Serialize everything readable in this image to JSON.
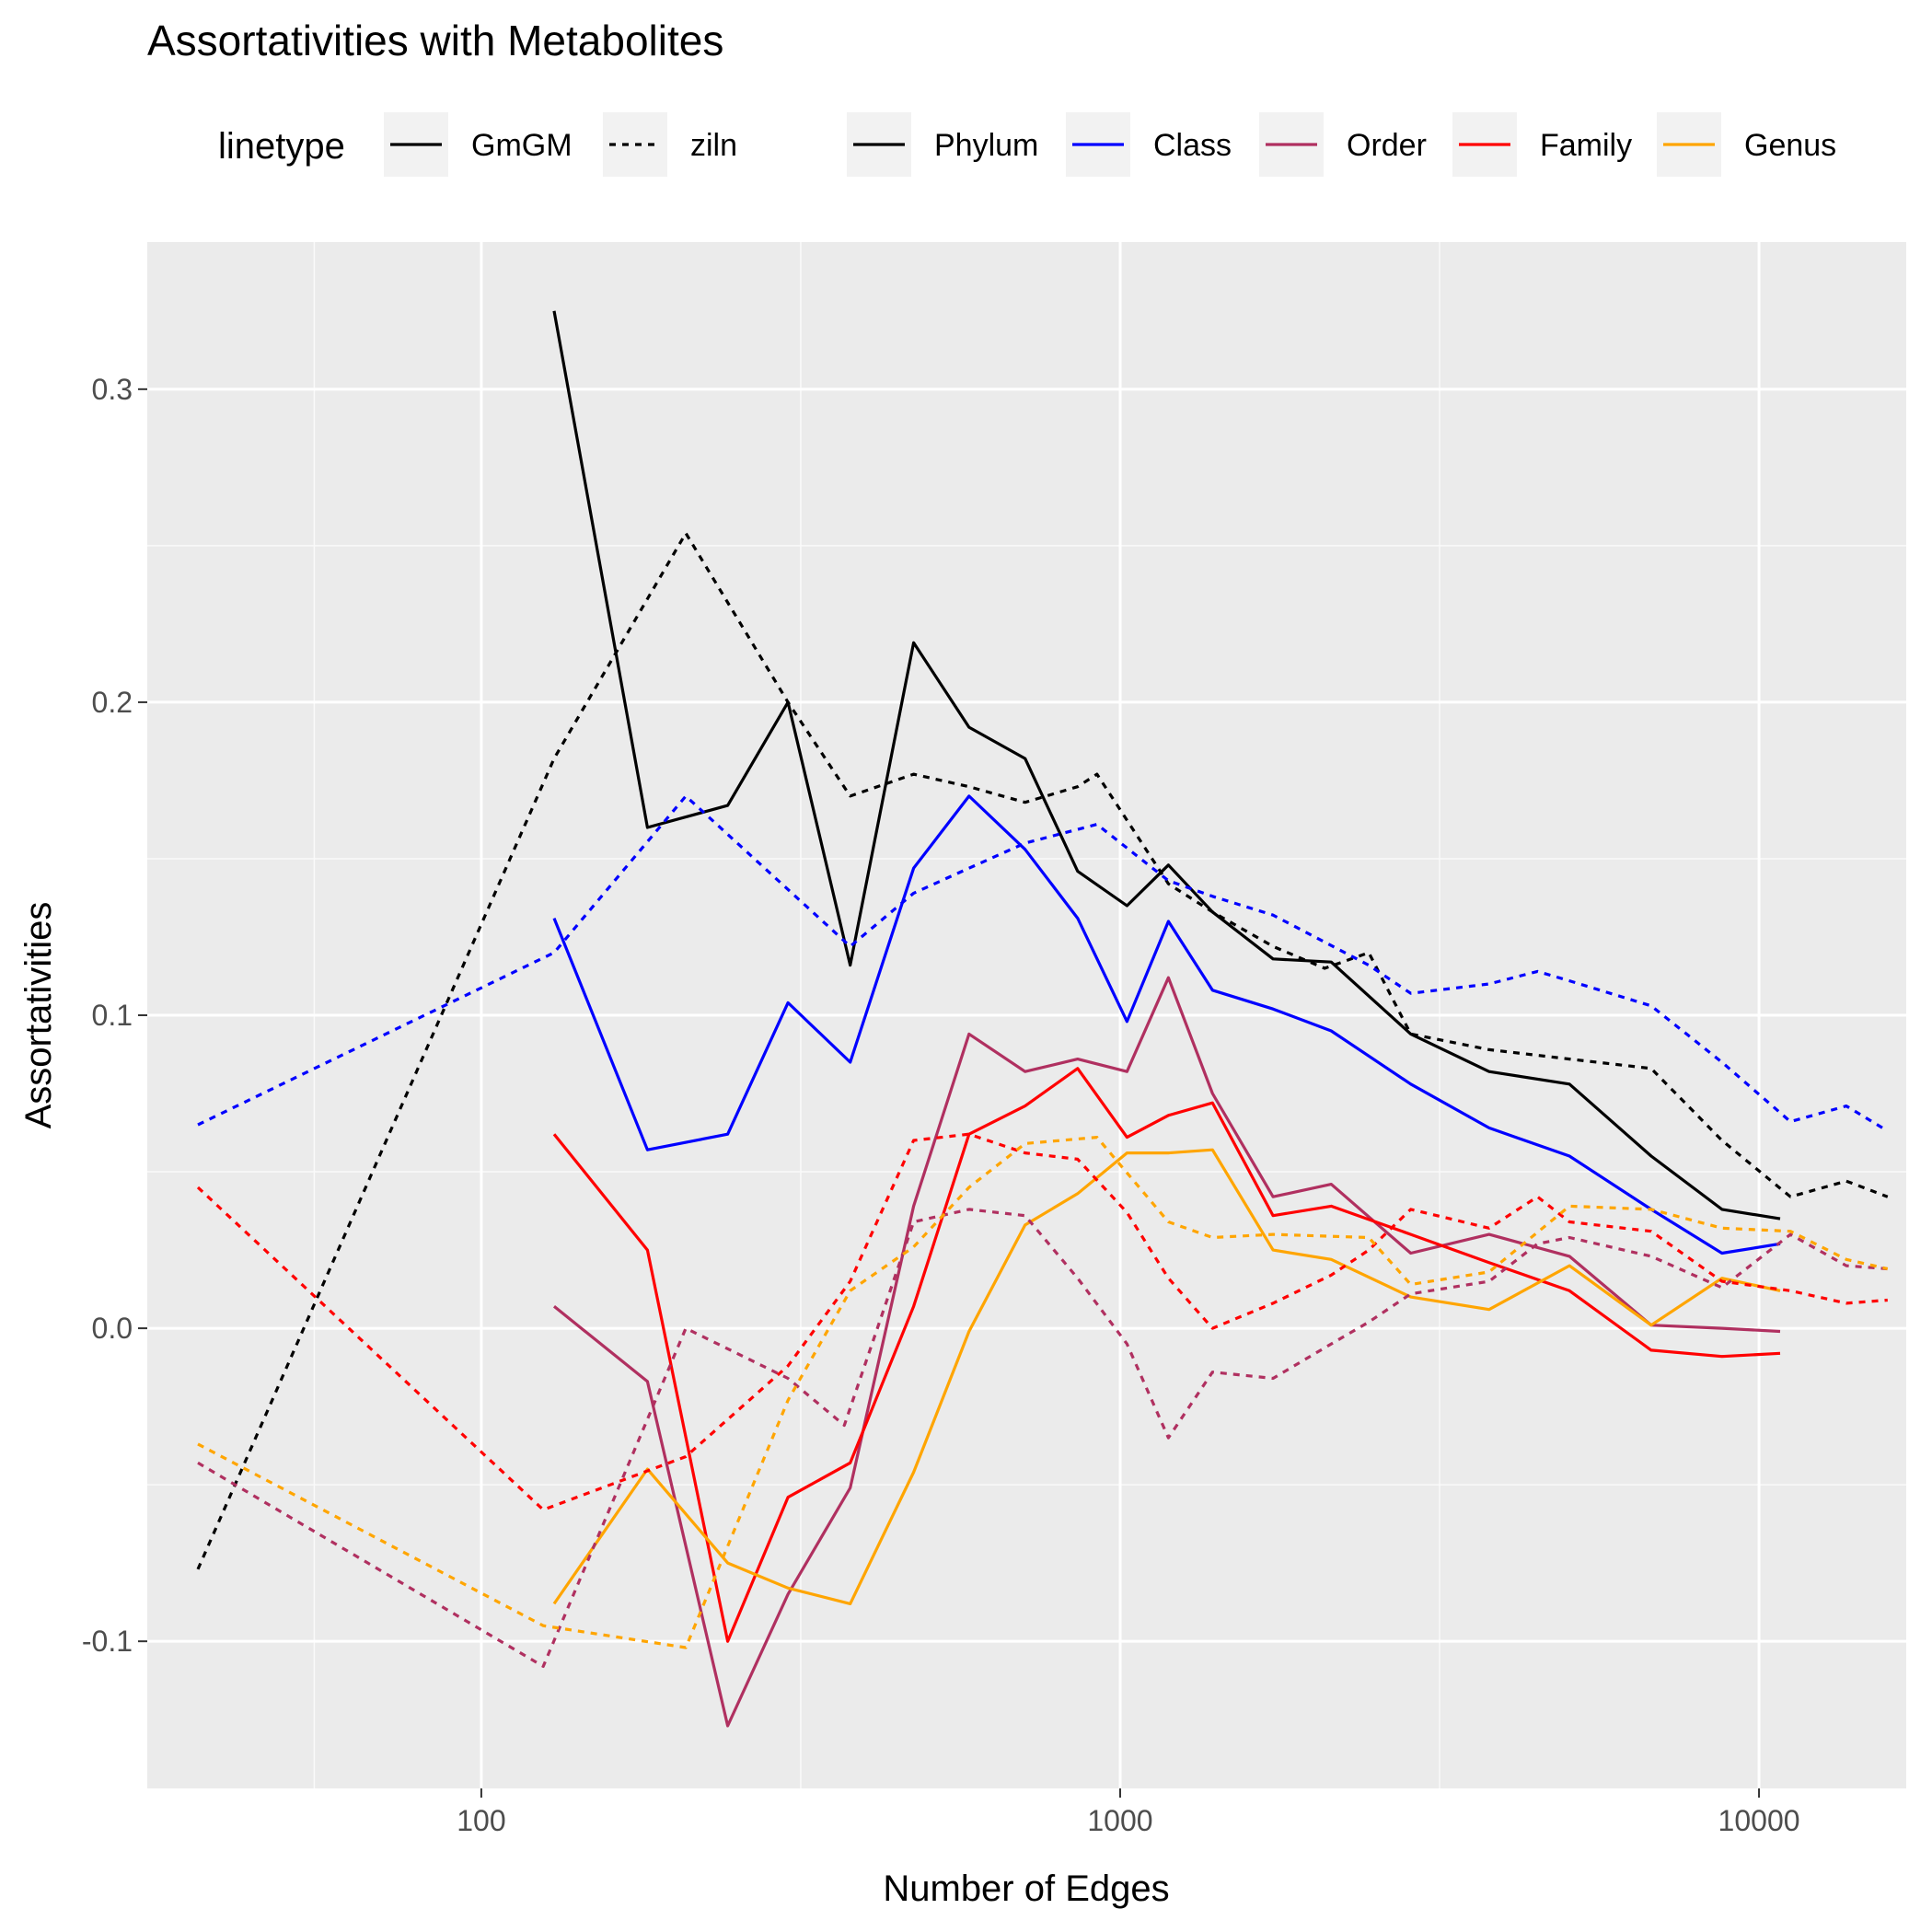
{
  "title": "Assortativities with Metabolites",
  "legend": {
    "linetype_title": "linetype",
    "linetypes": [
      {
        "label": "GmGM",
        "dash": "solid"
      },
      {
        "label": "ziln",
        "dash": "dotted"
      }
    ],
    "colors": [
      {
        "label": "Phylum",
        "color": "#000000"
      },
      {
        "label": "Class",
        "color": "#0000ff"
      },
      {
        "label": "Order",
        "color": "#b03060"
      },
      {
        "label": "Family",
        "color": "#ff0000"
      },
      {
        "label": "Genus",
        "color": "#ffa500"
      }
    ]
  },
  "chart_data": {
    "type": "line",
    "title": "Assortativities with Metabolites",
    "xlabel": "Number of Edges",
    "ylabel": "Assortativities",
    "x_scale": "log10",
    "xlim": [
      30,
      17000
    ],
    "ylim": [
      -0.147,
      0.347
    ],
    "x_ticks": [
      100,
      1000,
      10000
    ],
    "x_tick_labels": [
      "100",
      "1000",
      "10000"
    ],
    "y_ticks": [
      -0.1,
      0.0,
      0.1,
      0.2,
      0.3
    ],
    "y_tick_labels": [
      "-0.1",
      "0.0",
      "0.1",
      "0.2",
      "0.3"
    ],
    "grid": true,
    "legend_position": "top",
    "series": [
      {
        "name": "Phylum",
        "linetype": "GmGM",
        "color": "#000000",
        "x": [
          130,
          182,
          243,
          302,
          378,
          475,
          580,
          710,
          858,
          1025,
          1190,
          1395,
          1735,
          2140,
          2850,
          3780,
          5050,
          6780,
          8750,
          10790
        ],
        "y": [
          0.325,
          0.16,
          0.167,
          0.2,
          0.116,
          0.219,
          0.192,
          0.182,
          0.146,
          0.135,
          0.148,
          0.133,
          0.118,
          0.117,
          0.094,
          0.082,
          0.078,
          0.055,
          0.038,
          0.035
        ]
      },
      {
        "name": "Class",
        "linetype": "GmGM",
        "color": "#0000ff",
        "x": [
          130,
          182,
          243,
          302,
          378,
          475,
          580,
          710,
          858,
          1025,
          1190,
          1395,
          1735,
          2140,
          2850,
          3780,
          5050,
          6780,
          8750,
          10790
        ],
        "y": [
          0.131,
          0.057,
          0.062,
          0.104,
          0.085,
          0.147,
          0.17,
          0.153,
          0.131,
          0.098,
          0.13,
          0.108,
          0.102,
          0.095,
          0.078,
          0.064,
          0.055,
          0.038,
          0.024,
          0.027
        ]
      },
      {
        "name": "Order",
        "linetype": "GmGM",
        "color": "#b03060",
        "x": [
          130,
          182,
          243,
          302,
          378,
          475,
          580,
          710,
          858,
          1025,
          1190,
          1395,
          1735,
          2140,
          2850,
          3780,
          5050,
          6780,
          8750,
          10790
        ],
        "y": [
          0.007,
          -0.017,
          -0.127,
          -0.085,
          -0.051,
          0.039,
          0.094,
          0.082,
          0.086,
          0.082,
          0.112,
          0.075,
          0.042,
          0.046,
          0.024,
          0.03,
          0.023,
          0.001,
          0.0,
          -0.001
        ]
      },
      {
        "name": "Family",
        "linetype": "GmGM",
        "color": "#ff0000",
        "x": [
          130,
          182,
          243,
          302,
          378,
          475,
          580,
          710,
          858,
          1025,
          1190,
          1395,
          1735,
          2140,
          2850,
          3780,
          5050,
          6780,
          8750,
          10790
        ],
        "y": [
          0.062,
          0.025,
          -0.1,
          -0.054,
          -0.043,
          0.007,
          0.062,
          0.071,
          0.083,
          0.061,
          0.068,
          0.072,
          0.036,
          0.039,
          0.03,
          0.021,
          0.012,
          -0.007,
          -0.009,
          -0.008
        ]
      },
      {
        "name": "Genus",
        "linetype": "GmGM",
        "color": "#ffa500",
        "x": [
          130,
          182,
          243,
          302,
          378,
          475,
          580,
          710,
          858,
          1025,
          1190,
          1395,
          1735,
          2140,
          2850,
          3780,
          5050,
          6780,
          8750,
          10790
        ],
        "y": [
          -0.088,
          -0.045,
          -0.075,
          -0.083,
          -0.088,
          -0.046,
          -0.001,
          0.033,
          0.043,
          0.056,
          0.056,
          0.057,
          0.025,
          0.022,
          0.01,
          0.006,
          0.02,
          0.001,
          0.016,
          0.012
        ]
      },
      {
        "name": "Phylum",
        "linetype": "ziln",
        "color": "#000000",
        "x": [
          36,
          130,
          209,
          302,
          378,
          475,
          580,
          710,
          858,
          920,
          1190,
          1395,
          1735,
          2090,
          2450,
          2850,
          3780,
          5050,
          6780,
          8750,
          11200,
          13700,
          15900
        ],
        "y": [
          -0.077,
          0.182,
          0.254,
          0.2,
          0.17,
          0.177,
          0.173,
          0.168,
          0.173,
          0.177,
          0.142,
          0.133,
          0.122,
          0.115,
          0.12,
          0.094,
          0.089,
          0.086,
          0.083,
          0.06,
          0.042,
          0.047,
          0.042
        ]
      },
      {
        "name": "Class",
        "linetype": "ziln",
        "color": "#0000ff",
        "x": [
          36,
          130,
          209,
          378,
          475,
          580,
          710,
          920,
          1190,
          1395,
          1735,
          2450,
          2850,
          3780,
          4500,
          5050,
          6780,
          8750,
          11200,
          13700,
          15900
        ],
        "y": [
          0.065,
          0.12,
          0.17,
          0.122,
          0.139,
          0.147,
          0.155,
          0.161,
          0.143,
          0.138,
          0.132,
          0.116,
          0.107,
          0.11,
          0.114,
          0.111,
          0.103,
          0.085,
          0.066,
          0.071,
          0.063
        ]
      },
      {
        "name": "Order",
        "linetype": "ziln",
        "color": "#b03060",
        "x": [
          36,
          125,
          209,
          302,
          370,
          475,
          580,
          710,
          858,
          1025,
          1190,
          1395,
          1735,
          2140,
          2450,
          2850,
          3780,
          4500,
          5050,
          6780,
          8750,
          11200,
          13700,
          15900
        ],
        "y": [
          -0.043,
          -0.108,
          0.0,
          -0.016,
          -0.031,
          0.034,
          0.038,
          0.036,
          0.016,
          -0.005,
          -0.035,
          -0.014,
          -0.016,
          -0.005,
          0.002,
          0.011,
          0.015,
          0.027,
          0.029,
          0.023,
          0.013,
          0.03,
          0.02,
          0.019
        ]
      },
      {
        "name": "Family",
        "linetype": "ziln",
        "color": "#ff0000",
        "x": [
          36,
          125,
          209,
          302,
          378,
          475,
          580,
          710,
          858,
          1025,
          1190,
          1395,
          1735,
          2140,
          2450,
          2850,
          3780,
          4500,
          5050,
          6780,
          8750,
          11200,
          13700,
          15900
        ],
        "y": [
          0.045,
          -0.058,
          -0.041,
          -0.012,
          0.015,
          0.06,
          0.062,
          0.056,
          0.054,
          0.037,
          0.016,
          0.0,
          0.008,
          0.017,
          0.025,
          0.038,
          0.032,
          0.042,
          0.034,
          0.031,
          0.015,
          0.012,
          0.008,
          0.009
        ]
      },
      {
        "name": "Genus",
        "linetype": "ziln",
        "color": "#ffa500",
        "x": [
          36,
          125,
          209,
          302,
          378,
          475,
          580,
          710,
          920,
          1190,
          1395,
          1735,
          2450,
          2850,
          3780,
          5050,
          6780,
          8750,
          11200,
          13700,
          15900
        ],
        "y": [
          -0.037,
          -0.095,
          -0.102,
          -0.023,
          0.012,
          0.026,
          0.045,
          0.059,
          0.061,
          0.034,
          0.029,
          0.03,
          0.029,
          0.014,
          0.018,
          0.039,
          0.038,
          0.032,
          0.031,
          0.022,
          0.019
        ]
      }
    ]
  }
}
